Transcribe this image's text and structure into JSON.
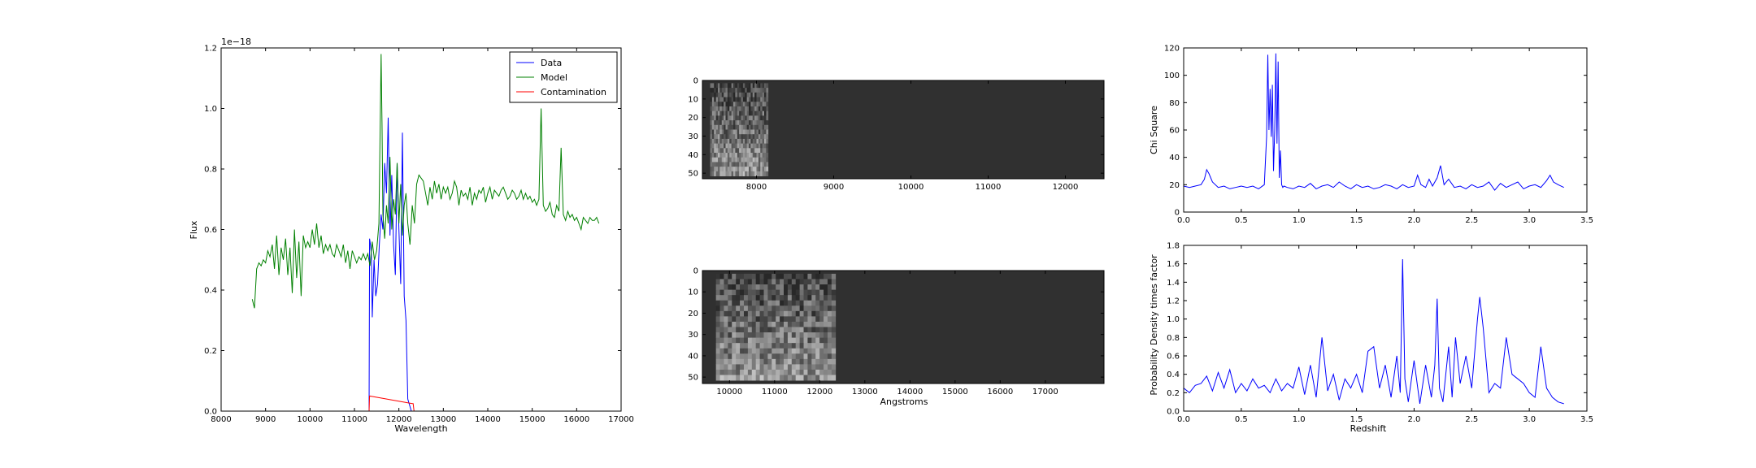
{
  "figure": {
    "background": "#ffffff"
  },
  "chart_data": [
    {
      "id": "spectrum",
      "type": "line",
      "xlabel": "Wavelength",
      "ylabel": "Flux",
      "offset_text": "1e−18",
      "xlim": [
        8000,
        17000
      ],
      "ylim": [
        0,
        1.2
      ],
      "xticks": [
        8000,
        9000,
        10000,
        11000,
        12000,
        13000,
        14000,
        15000,
        16000,
        17000
      ],
      "yticks": [
        0.0,
        0.2,
        0.4,
        0.6,
        0.8,
        1.0,
        1.2
      ],
      "legend_position": "top-right",
      "series": [
        {
          "name": "Data",
          "color": "#0000ff",
          "x": [
            11330,
            11340,
            11360,
            11380,
            11400,
            11440,
            11480,
            11520,
            11560,
            11600,
            11640,
            11680,
            11720,
            11760,
            11800,
            11840,
            11880,
            11920,
            11960,
            12000,
            12040,
            12080,
            12120,
            12160,
            12200,
            12240,
            12280,
            12300,
            12320,
            12340
          ],
          "y": [
            0.0,
            0.57,
            0.55,
            0.52,
            0.31,
            0.5,
            0.38,
            0.42,
            0.55,
            0.65,
            0.6,
            0.82,
            0.72,
            0.97,
            0.58,
            0.78,
            0.55,
            0.45,
            0.82,
            0.6,
            0.42,
            0.92,
            0.38,
            0.3,
            0.04,
            0.02,
            0.0,
            0.0,
            0.0,
            0.0
          ]
        },
        {
          "name": "Model",
          "color": "#008000",
          "x": [
            8700,
            8750,
            8800,
            8850,
            8900,
            8950,
            9000,
            9050,
            9100,
            9150,
            9200,
            9250,
            9300,
            9350,
            9400,
            9450,
            9500,
            9550,
            9600,
            9650,
            9700,
            9750,
            9800,
            9850,
            9900,
            9950,
            10000,
            10050,
            10100,
            10150,
            10200,
            10250,
            10300,
            10350,
            10400,
            10450,
            10500,
            10550,
            10600,
            10650,
            10700,
            10750,
            10800,
            10850,
            10900,
            10950,
            11000,
            11050,
            11100,
            11150,
            11200,
            11250,
            11300,
            11350,
            11400,
            11450,
            11500,
            11550,
            11600,
            11620,
            11640,
            11680,
            11720,
            11760,
            11800,
            11840,
            11880,
            11920,
            11960,
            12000,
            12040,
            12080,
            12120,
            12160,
            12200,
            12250,
            12300,
            12350,
            12400,
            12450,
            12500,
            12550,
            12600,
            12650,
            12700,
            12750,
            12800,
            12850,
            12900,
            12950,
            13000,
            13050,
            13100,
            13150,
            13200,
            13250,
            13300,
            13350,
            13400,
            13450,
            13500,
            13550,
            13600,
            13650,
            13700,
            13750,
            13800,
            13850,
            13900,
            13950,
            14000,
            14050,
            14100,
            14150,
            14200,
            14250,
            14300,
            14350,
            14400,
            14450,
            14500,
            14550,
            14600,
            14650,
            14700,
            14750,
            14800,
            14850,
            14900,
            14950,
            15000,
            15050,
            15100,
            15150,
            15200,
            15250,
            15300,
            15350,
            15400,
            15450,
            15500,
            15550,
            15600,
            15650,
            15700,
            15750,
            15800,
            15850,
            15900,
            15950,
            16000,
            16050,
            16100,
            16150,
            16200,
            16250,
            16300,
            16350,
            16400,
            16450,
            16500
          ],
          "y": [
            0.37,
            0.34,
            0.47,
            0.49,
            0.48,
            0.5,
            0.49,
            0.53,
            0.51,
            0.55,
            0.47,
            0.58,
            0.45,
            0.54,
            0.5,
            0.57,
            0.45,
            0.54,
            0.39,
            0.6,
            0.44,
            0.56,
            0.38,
            0.58,
            0.54,
            0.56,
            0.54,
            0.6,
            0.55,
            0.62,
            0.54,
            0.58,
            0.52,
            0.55,
            0.53,
            0.55,
            0.52,
            0.51,
            0.55,
            0.53,
            0.51,
            0.55,
            0.49,
            0.53,
            0.47,
            0.53,
            0.51,
            0.49,
            0.51,
            0.5,
            0.52,
            0.5,
            0.52,
            0.48,
            0.56,
            0.5,
            0.53,
            0.62,
            1.18,
            0.95,
            0.65,
            0.57,
            0.68,
            0.62,
            0.84,
            0.6,
            0.7,
            0.65,
            0.82,
            0.62,
            0.75,
            0.58,
            0.68,
            0.72,
            0.62,
            0.55,
            0.68,
            0.62,
            0.75,
            0.78,
            0.77,
            0.76,
            0.72,
            0.68,
            0.74,
            0.7,
            0.76,
            0.72,
            0.75,
            0.7,
            0.74,
            0.72,
            0.74,
            0.7,
            0.72,
            0.76,
            0.74,
            0.68,
            0.73,
            0.71,
            0.72,
            0.7,
            0.74,
            0.68,
            0.72,
            0.7,
            0.73,
            0.72,
            0.74,
            0.69,
            0.72,
            0.74,
            0.7,
            0.73,
            0.72,
            0.71,
            0.73,
            0.74,
            0.72,
            0.7,
            0.71,
            0.73,
            0.72,
            0.7,
            0.71,
            0.73,
            0.7,
            0.72,
            0.7,
            0.71,
            0.69,
            0.7,
            0.68,
            0.7,
            1.0,
            0.68,
            0.66,
            0.67,
            0.69,
            0.65,
            0.64,
            0.68,
            0.66,
            0.87,
            0.65,
            0.63,
            0.66,
            0.64,
            0.65,
            0.63,
            0.64,
            0.62,
            0.6,
            0.64,
            0.63,
            0.62,
            0.64,
            0.63,
            0.63,
            0.64,
            0.62
          ]
        },
        {
          "name": "Contamination",
          "color": "#ff0000",
          "x": [
            8000,
            11330,
            11340,
            12300,
            12320,
            12340,
            16500
          ],
          "y": [
            0.0,
            0.0,
            0.05,
            0.025,
            0.025,
            0.0,
            0.0
          ]
        }
      ]
    },
    {
      "id": "image-top",
      "type": "heatmap",
      "xlim": [
        7300,
        12500
      ],
      "ylim": [
        53,
        0
      ],
      "xticks": [
        8000,
        9000,
        10000,
        11000,
        12000
      ],
      "yticks": [
        0,
        10,
        20,
        30,
        40,
        50
      ],
      "data_region_x": [
        7400,
        8150
      ],
      "background_color": "#303030"
    },
    {
      "id": "image-bottom",
      "type": "heatmap",
      "xlabel": "Angstroms",
      "xlim": [
        9400,
        18300
      ],
      "ylim": [
        53,
        0
      ],
      "xticks": [
        10000,
        11000,
        12000,
        13000,
        14000,
        15000,
        16000,
        17000
      ],
      "yticks": [
        0,
        10,
        20,
        30,
        40,
        50
      ],
      "data_region_x": [
        9700,
        12350
      ],
      "background_color": "#303030"
    },
    {
      "id": "chisq",
      "type": "line",
      "ylabel": "Chi Square",
      "xlim": [
        0,
        3.5
      ],
      "ylim": [
        0,
        120
      ],
      "xticks": [
        0.0,
        0.5,
        1.0,
        1.5,
        2.0,
        2.5,
        3.0,
        3.5
      ],
      "yticks": [
        0,
        20,
        40,
        60,
        80,
        100,
        120
      ],
      "series": [
        {
          "color": "#0000ff",
          "x": [
            0.0,
            0.05,
            0.1,
            0.15,
            0.18,
            0.2,
            0.22,
            0.25,
            0.3,
            0.35,
            0.4,
            0.45,
            0.5,
            0.55,
            0.6,
            0.65,
            0.7,
            0.72,
            0.73,
            0.74,
            0.75,
            0.76,
            0.77,
            0.78,
            0.79,
            0.8,
            0.81,
            0.82,
            0.83,
            0.84,
            0.85,
            0.86,
            0.87,
            0.9,
            0.95,
            1.0,
            1.05,
            1.1,
            1.15,
            1.2,
            1.25,
            1.3,
            1.35,
            1.4,
            1.45,
            1.5,
            1.55,
            1.6,
            1.65,
            1.7,
            1.75,
            1.8,
            1.85,
            1.9,
            1.95,
            2.0,
            2.03,
            2.06,
            2.1,
            2.13,
            2.16,
            2.2,
            2.23,
            2.26,
            2.3,
            2.35,
            2.4,
            2.45,
            2.5,
            2.55,
            2.6,
            2.65,
            2.7,
            2.75,
            2.8,
            2.85,
            2.9,
            2.95,
            3.0,
            3.05,
            3.1,
            3.15,
            3.18,
            3.21,
            3.25,
            3.3
          ],
          "y": [
            19,
            18,
            19,
            20,
            24,
            31,
            28,
            22,
            18,
            19,
            17,
            18,
            19,
            18,
            19,
            17,
            20,
            55,
            115,
            60,
            90,
            55,
            93,
            30,
            60,
            116,
            50,
            110,
            25,
            45,
            20,
            18,
            19,
            18,
            17,
            19,
            18,
            21,
            17,
            19,
            20,
            18,
            22,
            19,
            17,
            20,
            18,
            19,
            17,
            18,
            20,
            19,
            17,
            20,
            18,
            19,
            27,
            20,
            18,
            24,
            19,
            25,
            34,
            20,
            24,
            18,
            19,
            17,
            20,
            18,
            19,
            22,
            16,
            21,
            18,
            20,
            22,
            17,
            19,
            20,
            18,
            23,
            27,
            22,
            20,
            18
          ]
        }
      ]
    },
    {
      "id": "pdf",
      "type": "line",
      "xlabel": "Redshift",
      "ylabel": "Probability Density times factor",
      "xlim": [
        0,
        3.5
      ],
      "ylim": [
        0,
        1.8
      ],
      "xticks": [
        0.0,
        0.5,
        1.0,
        1.5,
        2.0,
        2.5,
        3.0,
        3.5
      ],
      "yticks": [
        0.0,
        0.2,
        0.4,
        0.6,
        0.8,
        1.0,
        1.2,
        1.4,
        1.6,
        1.8
      ],
      "series": [
        {
          "color": "#0000ff",
          "x": [
            0.0,
            0.05,
            0.1,
            0.15,
            0.2,
            0.25,
            0.3,
            0.35,
            0.4,
            0.45,
            0.5,
            0.55,
            0.6,
            0.65,
            0.7,
            0.75,
            0.8,
            0.85,
            0.9,
            0.95,
            1.0,
            1.05,
            1.1,
            1.15,
            1.2,
            1.25,
            1.3,
            1.35,
            1.4,
            1.45,
            1.5,
            1.55,
            1.6,
            1.65,
            1.7,
            1.75,
            1.8,
            1.85,
            1.88,
            1.9,
            1.92,
            1.95,
            2.0,
            2.05,
            2.1,
            2.15,
            2.18,
            2.2,
            2.22,
            2.25,
            2.3,
            2.33,
            2.36,
            2.4,
            2.45,
            2.5,
            2.55,
            2.57,
            2.6,
            2.65,
            2.7,
            2.75,
            2.8,
            2.85,
            2.9,
            2.95,
            3.0,
            3.05,
            3.1,
            3.15,
            3.2,
            3.25,
            3.3
          ],
          "y": [
            0.25,
            0.2,
            0.28,
            0.3,
            0.38,
            0.22,
            0.42,
            0.25,
            0.45,
            0.2,
            0.3,
            0.22,
            0.35,
            0.25,
            0.28,
            0.2,
            0.35,
            0.22,
            0.3,
            0.25,
            0.48,
            0.18,
            0.5,
            0.15,
            0.8,
            0.22,
            0.4,
            0.12,
            0.35,
            0.25,
            0.4,
            0.2,
            0.65,
            0.7,
            0.25,
            0.5,
            0.15,
            0.6,
            0.2,
            1.65,
            0.35,
            0.1,
            0.55,
            0.08,
            0.5,
            0.15,
            0.5,
            1.22,
            0.25,
            0.1,
            0.7,
            0.15,
            0.8,
            0.3,
            0.6,
            0.25,
            1.0,
            1.24,
            0.9,
            0.2,
            0.3,
            0.25,
            0.8,
            0.4,
            0.35,
            0.3,
            0.2,
            0.15,
            0.7,
            0.25,
            0.15,
            0.1,
            0.08
          ]
        }
      ]
    }
  ]
}
